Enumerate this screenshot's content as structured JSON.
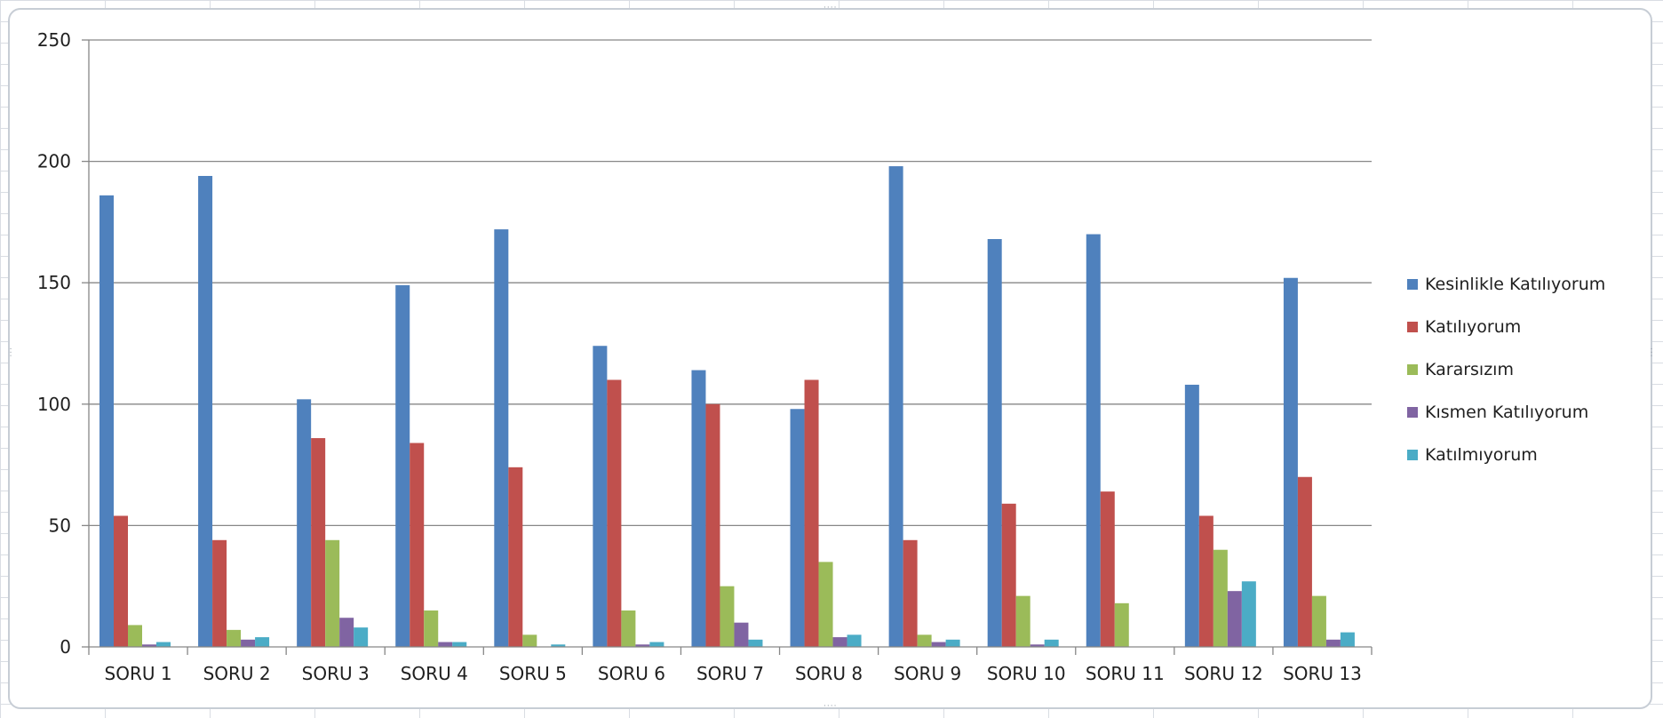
{
  "chart_data": {
    "type": "bar",
    "title": "",
    "xlabel": "",
    "ylabel": "",
    "ylim": [
      0,
      250
    ],
    "yticks": [
      0,
      50,
      100,
      150,
      200,
      250
    ],
    "grid": true,
    "legend_position": "right",
    "categories": [
      "SORU 1",
      "SORU 2",
      "SORU 3",
      "SORU 4",
      "SORU 5",
      "SORU 6",
      "SORU 7",
      "SORU 8",
      "SORU 9",
      "SORU 10",
      "SORU 11",
      "SORU 12",
      "SORU 13"
    ],
    "series": [
      {
        "name": "Kesinlikle Katılıyorum",
        "color": "#4f81bd",
        "values": [
          186,
          194,
          102,
          149,
          172,
          124,
          114,
          98,
          198,
          168,
          170,
          108,
          152
        ]
      },
      {
        "name": "Katılıyorum",
        "color": "#c0504d",
        "values": [
          54,
          44,
          86,
          84,
          74,
          110,
          100,
          110,
          44,
          59,
          64,
          54,
          70
        ]
      },
      {
        "name": "Kararsızım",
        "color": "#9bbb59",
        "values": [
          9,
          7,
          44,
          15,
          5,
          15,
          25,
          35,
          5,
          21,
          18,
          40,
          21
        ]
      },
      {
        "name": "Kısmen Katılıyorum",
        "color": "#8064a2",
        "values": [
          1,
          3,
          12,
          2,
          0,
          1,
          10,
          4,
          2,
          1,
          0,
          23,
          3
        ]
      },
      {
        "name": "Katılmıyorum",
        "color": "#4bacc6",
        "values": [
          2,
          4,
          8,
          2,
          1,
          2,
          3,
          5,
          3,
          3,
          0,
          27,
          6
        ]
      }
    ]
  }
}
